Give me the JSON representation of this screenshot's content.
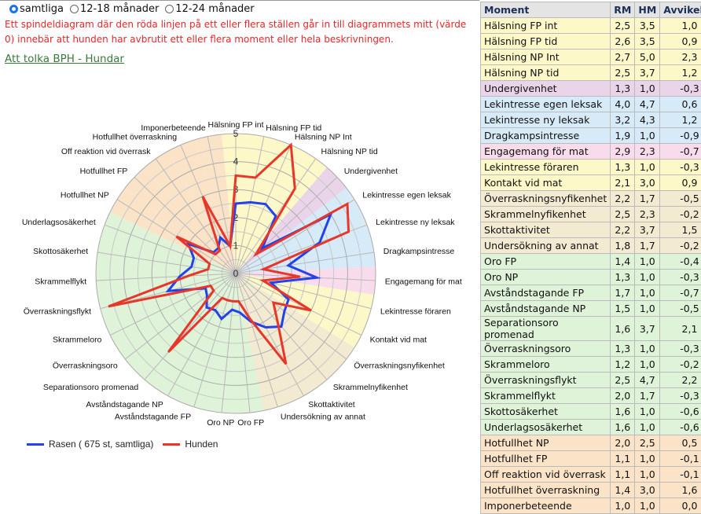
{
  "filters": {
    "options": [
      "samtliga",
      "12-18 månader",
      "12-24 månader"
    ],
    "selected": "samtliga"
  },
  "warning": "Ett spindeldiagram där den röda linjen på ett eller flera ställen går in till diagrammets mitt (värde 0) innebär att hunden har avbrutit ett eller flera moment eller hela beskrivningen.",
  "link": "Att tolka BPH - Hundar",
  "colors": {
    "yellow": "#fdf8c8",
    "purple": "#ead4ea",
    "blue": "#d6eaf8",
    "pink": "#f9dcec",
    "tan": "#f3ead2",
    "green": "#dff3d8",
    "orange": "#fbe3c8",
    "rasen": "#2343e8",
    "hunden": "#e8362a"
  },
  "table": {
    "headers": [
      "Moment",
      "RM",
      "HM",
      "Avvikelse"
    ],
    "rows": [
      {
        "moment": "Hälsning FP int",
        "rm": "2,5",
        "hm": "3,5",
        "dev": "1,0",
        "group": "yellow"
      },
      {
        "moment": "Hälsning FP tid",
        "rm": "2,6",
        "hm": "3,5",
        "dev": "0,9",
        "group": "yellow"
      },
      {
        "moment": "Hälsning NP Int",
        "rm": "2,7",
        "hm": "5,0",
        "dev": "2,3",
        "group": "yellow"
      },
      {
        "moment": "Hälsning NP tid",
        "rm": "2,5",
        "hm": "3,7",
        "dev": "1,2",
        "group": "yellow"
      },
      {
        "moment": "Undergivenhet",
        "rm": "1,3",
        "hm": "1,0",
        "dev": "-0,3",
        "group": "purple"
      },
      {
        "moment": "Lekintresse egen leksak",
        "rm": "4,0",
        "hm": "4,7",
        "dev": "0,6",
        "group": "blue"
      },
      {
        "moment": "Lekintresse ny leksak",
        "rm": "3,2",
        "hm": "4,3",
        "dev": "1,2",
        "group": "blue"
      },
      {
        "moment": "Dragkampsintresse",
        "rm": "1,9",
        "hm": "1,0",
        "dev": "-0,9",
        "group": "blue"
      },
      {
        "moment": "Engagemang för mat",
        "rm": "2,9",
        "hm": "2,3",
        "dev": "-0,7",
        "group": "pink"
      },
      {
        "moment": "Lekintresse föraren",
        "rm": "1,3",
        "hm": "1,0",
        "dev": "-0,3",
        "group": "yellow"
      },
      {
        "moment": "Kontakt vid mat",
        "rm": "2,1",
        "hm": "3,0",
        "dev": "0,9",
        "group": "yellow"
      },
      {
        "moment": "Överraskningsnyfikenhet",
        "rm": "2,2",
        "hm": "1,7",
        "dev": "-0,5",
        "group": "tan"
      },
      {
        "moment": "Skrammelnyfikenhet",
        "rm": "2,5",
        "hm": "2,3",
        "dev": "-0,2",
        "group": "tan"
      },
      {
        "moment": "Skottaktivitet",
        "rm": "2,2",
        "hm": "3,7",
        "dev": "1,5",
        "group": "tan"
      },
      {
        "moment": "Undersökning av annat",
        "rm": "1,8",
        "hm": "1,7",
        "dev": "-0,2",
        "group": "tan"
      },
      {
        "moment": "Oro FP",
        "rm": "1,4",
        "hm": "1,0",
        "dev": "-0,4",
        "group": "green"
      },
      {
        "moment": "Oro NP",
        "rm": "1,3",
        "hm": "1,0",
        "dev": "-0,3",
        "group": "green"
      },
      {
        "moment": "Avståndstagande FP",
        "rm": "1,7",
        "hm": "1,0",
        "dev": "-0,7",
        "group": "green"
      },
      {
        "moment": "Avståndstagande NP",
        "rm": "1,5",
        "hm": "1,0",
        "dev": "-0,5",
        "group": "green"
      },
      {
        "moment": "Separationsoro promenad",
        "rm": "1,6",
        "hm": "3,7",
        "dev": "2,1",
        "group": "green"
      },
      {
        "moment": "Överraskningsoro",
        "rm": "1,3",
        "hm": "1,0",
        "dev": "-0,3",
        "group": "green"
      },
      {
        "moment": "Skrammeloro",
        "rm": "1,2",
        "hm": "1,0",
        "dev": "-0,2",
        "group": "green"
      },
      {
        "moment": "Överraskningsflykt",
        "rm": "2,5",
        "hm": "4,7",
        "dev": "2,2",
        "group": "green"
      },
      {
        "moment": "Skrammelflykt",
        "rm": "2,0",
        "hm": "1,7",
        "dev": "-0,3",
        "group": "green"
      },
      {
        "moment": "Skottosäkerhet",
        "rm": "1,6",
        "hm": "1,0",
        "dev": "-0,6",
        "group": "green"
      },
      {
        "moment": "Underlagsosäkerhet",
        "rm": "1,6",
        "hm": "1,0",
        "dev": "-0,6",
        "group": "green"
      },
      {
        "moment": "Hotfullhet NP",
        "rm": "2,0",
        "hm": "2,5",
        "dev": "0,5",
        "group": "orange"
      },
      {
        "moment": "Hotfullhet FP",
        "rm": "1,1",
        "hm": "1,0",
        "dev": "-0,1",
        "group": "orange"
      },
      {
        "moment": "Off reaktion vid överrask",
        "rm": "1,1",
        "hm": "1,0",
        "dev": "-0,1",
        "group": "orange"
      },
      {
        "moment": "Hotfullhet överraskning",
        "rm": "1,4",
        "hm": "3,0",
        "dev": "1,6",
        "group": "orange"
      },
      {
        "moment": "Imponerbeteende",
        "rm": "1,0",
        "hm": "1,0",
        "dev": "0,0",
        "group": "orange"
      }
    ]
  },
  "chart_data": {
    "type": "radar",
    "axis_ticks": [
      "0",
      "1",
      "2",
      "3",
      "4",
      "5"
    ],
    "range": [
      0,
      5
    ],
    "categories": [
      "Hälsning FP int",
      "Hälsning FP tid",
      "Hälsning NP Int",
      "Hälsning NP tid",
      "Undergivenhet",
      "Lekintresse egen leksak",
      "Lekintresse ny leksak",
      "Dragkampsintresse",
      "Engagemang för mat",
      "Lekintresse föraren",
      "Kontakt vid mat",
      "Överraskningsnyfikenhet",
      "Skrammelnyfikenhet",
      "Skottaktivitet",
      "Undersökning av annat",
      "Oro FP",
      "Oro NP",
      "Avståndstagande FP",
      "Avståndstagande NP",
      "Separationsoro promenad",
      "Överraskningsoro",
      "Skrammeloro",
      "Överraskningsflykt",
      "Skrammelflykt",
      "Skottosäkerhet",
      "Underlagsosäkerhet",
      "Hotfullhet NP",
      "Hotfullhet FP",
      "Off reaktion vid överrask",
      "Hotfullhet överraskning",
      "Imponerbeteende"
    ],
    "series": [
      {
        "name": "Rasen ( 675 st, samtliga)",
        "color": "#2343e8",
        "values": [
          2.5,
          2.6,
          2.7,
          2.5,
          1.3,
          4.0,
          3.2,
          1.9,
          2.9,
          1.3,
          2.1,
          2.2,
          2.5,
          2.2,
          1.8,
          1.4,
          1.3,
          1.7,
          1.5,
          1.6,
          1.3,
          1.2,
          2.5,
          2.0,
          1.6,
          1.6,
          2.0,
          1.1,
          1.1,
          1.4,
          1.0
        ]
      },
      {
        "name": "Hunden",
        "color": "#e8362a",
        "values": [
          3.5,
          3.5,
          5.0,
          3.7,
          1.0,
          4.7,
          4.3,
          1.0,
          2.3,
          1.0,
          3.0,
          1.7,
          2.3,
          3.7,
          1.7,
          1.0,
          1.0,
          1.0,
          1.0,
          3.7,
          1.0,
          1.0,
          4.7,
          1.7,
          1.0,
          1.0,
          2.5,
          1.0,
          1.0,
          3.0,
          1.0
        ]
      }
    ],
    "legend": "bottom-left"
  }
}
